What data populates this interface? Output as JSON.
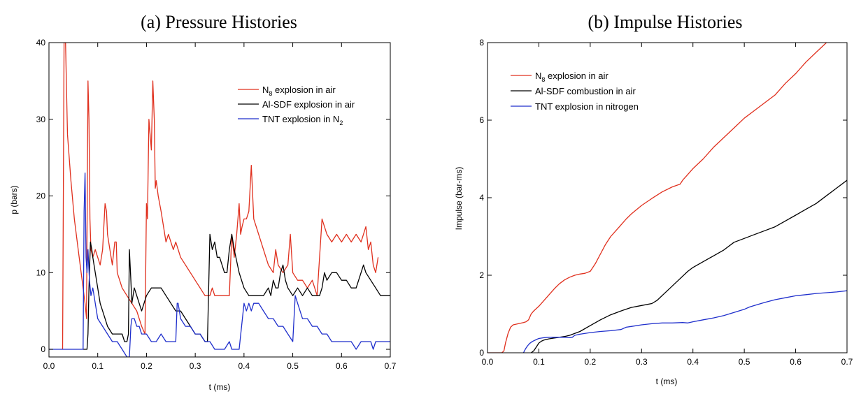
{
  "chart_data": [
    {
      "type": "line",
      "title": "(a) Pressure Histories",
      "xlabel": "t (ms)",
      "ylabel": "p (bars)",
      "xlim": [
        0,
        0.7
      ],
      "ylim": [
        -1,
        40
      ],
      "xticks": [
        "0.0",
        "0.1",
        "0.2",
        "0.3",
        "0.4",
        "0.5",
        "0.6",
        "0.7"
      ],
      "yticks": [
        "0",
        "10",
        "20",
        "30",
        "40"
      ],
      "grid": false,
      "legend_position": "upper-right",
      "series": [
        {
          "name": "N8 explosion in air",
          "name_main": "N",
          "name_sub": "8",
          "name_rest": " explosion in air",
          "color": "#e0301e",
          "x": [
            0.028,
            0.031,
            0.034,
            0.038,
            0.045,
            0.052,
            0.06,
            0.068,
            0.074,
            0.077,
            0.078,
            0.08,
            0.082,
            0.084,
            0.086,
            0.09,
            0.095,
            0.1,
            0.105,
            0.11,
            0.115,
            0.118,
            0.12,
            0.125,
            0.13,
            0.135,
            0.138,
            0.14,
            0.145,
            0.15,
            0.16,
            0.17,
            0.18,
            0.19,
            0.197,
            0.2,
            0.202,
            0.205,
            0.21,
            0.213,
            0.216,
            0.218,
            0.22,
            0.224,
            0.23,
            0.235,
            0.24,
            0.245,
            0.25,
            0.255,
            0.26,
            0.27,
            0.28,
            0.29,
            0.3,
            0.31,
            0.32,
            0.33,
            0.335,
            0.34,
            0.345,
            0.35,
            0.36,
            0.37,
            0.375,
            0.38,
            0.385,
            0.39,
            0.393,
            0.396,
            0.4,
            0.405,
            0.41,
            0.415,
            0.42,
            0.425,
            0.43,
            0.44,
            0.45,
            0.46,
            0.465,
            0.47,
            0.48,
            0.49,
            0.495,
            0.5,
            0.51,
            0.52,
            0.53,
            0.54,
            0.55,
            0.56,
            0.565,
            0.57,
            0.58,
            0.59,
            0.6,
            0.61,
            0.62,
            0.63,
            0.64,
            0.65,
            0.655,
            0.66,
            0.665,
            0.67,
            0.675
          ],
          "y": [
            0,
            40,
            40,
            28,
            22,
            17,
            13,
            9,
            6,
            4,
            15,
            35,
            30,
            17,
            13,
            12,
            13,
            12,
            11,
            13,
            19,
            18,
            15,
            13,
            11,
            14,
            14,
            10,
            9,
            8,
            7,
            6,
            5,
            3,
            2,
            19,
            17,
            30,
            26,
            35,
            30,
            21,
            22,
            20,
            18,
            16,
            14,
            15,
            14,
            13,
            14,
            12,
            11,
            10,
            9,
            8,
            7,
            7,
            8,
            7,
            7,
            7,
            7,
            7,
            15,
            12,
            15,
            19,
            15,
            16,
            17,
            17,
            18,
            24,
            17,
            16,
            15,
            13,
            11,
            10,
            13,
            11,
            10,
            11,
            15,
            10,
            9,
            9,
            8,
            9,
            7,
            17,
            16,
            15,
            14,
            15,
            14,
            15,
            14,
            15,
            14,
            16,
            13,
            14,
            11,
            10,
            12
          ]
        },
        {
          "name": "Al-SDF explosion in air",
          "color": "#000000",
          "x": [
            0.07,
            0.075,
            0.078,
            0.08,
            0.082,
            0.085,
            0.088,
            0.09,
            0.095,
            0.1,
            0.105,
            0.11,
            0.12,
            0.13,
            0.14,
            0.15,
            0.155,
            0.16,
            0.163,
            0.165,
            0.168,
            0.17,
            0.175,
            0.18,
            0.185,
            0.19,
            0.2,
            0.21,
            0.22,
            0.23,
            0.24,
            0.25,
            0.26,
            0.27,
            0.28,
            0.29,
            0.3,
            0.31,
            0.32,
            0.325,
            0.33,
            0.335,
            0.34,
            0.345,
            0.35,
            0.355,
            0.36,
            0.365,
            0.37,
            0.375,
            0.38,
            0.39,
            0.4,
            0.41,
            0.42,
            0.43,
            0.44,
            0.45,
            0.455,
            0.46,
            0.465,
            0.47,
            0.475,
            0.48,
            0.485,
            0.49,
            0.5,
            0.51,
            0.52,
            0.53,
            0.54,
            0.55,
            0.555,
            0.56,
            0.565,
            0.57,
            0.58,
            0.59,
            0.6,
            0.61,
            0.62,
            0.63,
            0.64,
            0.645,
            0.65,
            0.66,
            0.67,
            0.68,
            0.69,
            0.7
          ],
          "y": [
            0,
            0,
            0,
            2,
            8,
            14,
            13,
            12,
            10,
            8,
            6,
            5,
            3,
            2,
            2,
            2,
            1,
            1,
            2,
            13,
            9,
            6,
            8,
            7,
            6,
            5,
            7,
            8,
            8,
            8,
            7,
            6,
            5,
            5,
            4,
            3,
            2,
            2,
            1,
            1,
            15,
            13,
            14,
            12,
            12,
            11,
            10,
            10,
            13,
            15,
            13,
            10,
            8,
            7,
            7,
            7,
            7,
            8,
            7,
            9,
            8,
            8,
            10,
            11,
            9,
            8,
            7,
            8,
            7,
            8,
            7,
            7,
            7,
            8,
            10,
            9,
            10,
            10,
            9,
            9,
            8,
            8,
            10,
            11,
            10,
            9,
            8,
            7,
            7,
            7
          ]
        },
        {
          "name": "TNT explosion in N2",
          "name_main": "TNT explosion in N",
          "name_sub": "2",
          "name_rest": "",
          "color": "#1f2fcc",
          "x": [
            0,
            0.02,
            0.04,
            0.06,
            0.07,
            0.072,
            0.074,
            0.076,
            0.078,
            0.08,
            0.083,
            0.086,
            0.09,
            0.095,
            0.1,
            0.11,
            0.12,
            0.13,
            0.14,
            0.15,
            0.16,
            0.165,
            0.168,
            0.17,
            0.175,
            0.18,
            0.185,
            0.19,
            0.2,
            0.21,
            0.22,
            0.23,
            0.24,
            0.25,
            0.26,
            0.263,
            0.265,
            0.27,
            0.28,
            0.29,
            0.3,
            0.31,
            0.32,
            0.33,
            0.34,
            0.35,
            0.36,
            0.37,
            0.375,
            0.38,
            0.39,
            0.4,
            0.405,
            0.41,
            0.415,
            0.42,
            0.43,
            0.44,
            0.45,
            0.46,
            0.47,
            0.48,
            0.49,
            0.5,
            0.505,
            0.51,
            0.515,
            0.52,
            0.53,
            0.54,
            0.55,
            0.56,
            0.57,
            0.58,
            0.59,
            0.6,
            0.61,
            0.62,
            0.63,
            0.64,
            0.65,
            0.66,
            0.665,
            0.67,
            0.68,
            0.69,
            0.7
          ],
          "y": [
            0,
            0,
            0,
            0,
            0,
            18,
            23,
            12,
            10,
            13,
            9,
            7,
            8,
            6,
            4,
            3,
            2,
            1,
            1,
            0,
            -1,
            -1,
            3,
            4,
            4,
            3,
            3,
            2,
            2,
            1,
            1,
            2,
            1,
            1,
            1,
            6,
            6,
            4,
            3,
            3,
            2,
            2,
            1,
            1,
            0,
            0,
            0,
            1,
            0,
            0,
            0,
            6,
            5,
            6,
            5,
            6,
            6,
            5,
            4,
            4,
            3,
            3,
            2,
            1,
            7,
            6,
            5,
            4,
            4,
            3,
            3,
            2,
            2,
            1,
            1,
            1,
            1,
            1,
            0,
            1,
            1,
            1,
            0,
            1,
            1,
            1,
            1
          ]
        }
      ]
    },
    {
      "type": "line",
      "title": "(b) Impulse Histories",
      "xlabel": "t (ms)",
      "ylabel": "Impulse (bar-ms)",
      "xlim": [
        0,
        0.7
      ],
      "ylim": [
        0,
        8
      ],
      "xticks": [
        "0.0",
        "0.1",
        "0.2",
        "0.3",
        "0.4",
        "0.5",
        "0.6",
        "0.7"
      ],
      "yticks": [
        "0",
        "2",
        "4",
        "6",
        "8"
      ],
      "grid": false,
      "legend_position": "upper-left",
      "series": [
        {
          "name": "N8 explosion in air",
          "name_main": "N",
          "name_sub": "8",
          "name_rest": " explosion in air",
          "color": "#e0301e",
          "x": [
            0,
            0.02,
            0.028,
            0.032,
            0.035,
            0.04,
            0.045,
            0.05,
            0.06,
            0.07,
            0.075,
            0.08,
            0.085,
            0.09,
            0.1,
            0.11,
            0.12,
            0.13,
            0.14,
            0.15,
            0.16,
            0.17,
            0.18,
            0.19,
            0.2,
            0.21,
            0.22,
            0.23,
            0.24,
            0.25,
            0.26,
            0.27,
            0.28,
            0.3,
            0.32,
            0.34,
            0.36,
            0.375,
            0.38,
            0.39,
            0.4,
            0.42,
            0.44,
            0.46,
            0.48,
            0.5,
            0.52,
            0.54,
            0.56,
            0.58,
            0.6,
            0.62,
            0.64,
            0.66,
            0.68,
            0.7
          ],
          "y": [
            0,
            0,
            0,
            0.05,
            0.25,
            0.5,
            0.66,
            0.72,
            0.75,
            0.78,
            0.8,
            0.85,
            1.0,
            1.08,
            1.2,
            1.35,
            1.5,
            1.65,
            1.78,
            1.88,
            1.95,
            2.0,
            2.03,
            2.05,
            2.1,
            2.3,
            2.55,
            2.8,
            3.0,
            3.15,
            3.3,
            3.45,
            3.58,
            3.8,
            3.98,
            4.15,
            4.28,
            4.35,
            4.45,
            4.6,
            4.75,
            5.0,
            5.3,
            5.55,
            5.8,
            6.05,
            6.25,
            6.45,
            6.65,
            6.95,
            7.2,
            7.5,
            7.75,
            8.0,
            8.1,
            8.2
          ]
        },
        {
          "name": "Al-SDF combustion in air",
          "color": "#000000",
          "x": [
            0.085,
            0.09,
            0.095,
            0.1,
            0.105,
            0.11,
            0.12,
            0.13,
            0.14,
            0.15,
            0.16,
            0.18,
            0.2,
            0.22,
            0.24,
            0.26,
            0.28,
            0.3,
            0.32,
            0.33,
            0.35,
            0.37,
            0.39,
            0.4,
            0.42,
            0.44,
            0.46,
            0.48,
            0.5,
            0.52,
            0.54,
            0.56,
            0.58,
            0.6,
            0.62,
            0.64,
            0.66,
            0.68,
            0.7
          ],
          "y": [
            0,
            0.05,
            0.15,
            0.25,
            0.3,
            0.33,
            0.36,
            0.38,
            0.4,
            0.42,
            0.45,
            0.55,
            0.7,
            0.85,
            0.98,
            1.08,
            1.17,
            1.22,
            1.27,
            1.35,
            1.6,
            1.85,
            2.1,
            2.2,
            2.35,
            2.5,
            2.65,
            2.85,
            2.95,
            3.05,
            3.15,
            3.25,
            3.4,
            3.55,
            3.7,
            3.85,
            4.05,
            4.25,
            4.45
          ]
        },
        {
          "name": "TNT explosion in nitrogen",
          "color": "#1f2fcc",
          "x": [
            0.07,
            0.074,
            0.078,
            0.082,
            0.086,
            0.09,
            0.095,
            0.1,
            0.11,
            0.12,
            0.13,
            0.14,
            0.15,
            0.16,
            0.165,
            0.17,
            0.18,
            0.2,
            0.22,
            0.24,
            0.26,
            0.27,
            0.28,
            0.3,
            0.32,
            0.34,
            0.36,
            0.38,
            0.39,
            0.4,
            0.42,
            0.44,
            0.46,
            0.48,
            0.5,
            0.51,
            0.52,
            0.54,
            0.56,
            0.58,
            0.6,
            0.62,
            0.64,
            0.66,
            0.68,
            0.7
          ],
          "y": [
            0,
            0.1,
            0.18,
            0.24,
            0.28,
            0.31,
            0.34,
            0.37,
            0.39,
            0.4,
            0.4,
            0.4,
            0.4,
            0.39,
            0.4,
            0.45,
            0.48,
            0.52,
            0.55,
            0.57,
            0.6,
            0.66,
            0.68,
            0.72,
            0.75,
            0.77,
            0.77,
            0.78,
            0.77,
            0.8,
            0.85,
            0.9,
            0.96,
            1.04,
            1.12,
            1.18,
            1.22,
            1.3,
            1.37,
            1.42,
            1.47,
            1.5,
            1.53,
            1.55,
            1.57,
            1.6
          ]
        }
      ]
    }
  ]
}
